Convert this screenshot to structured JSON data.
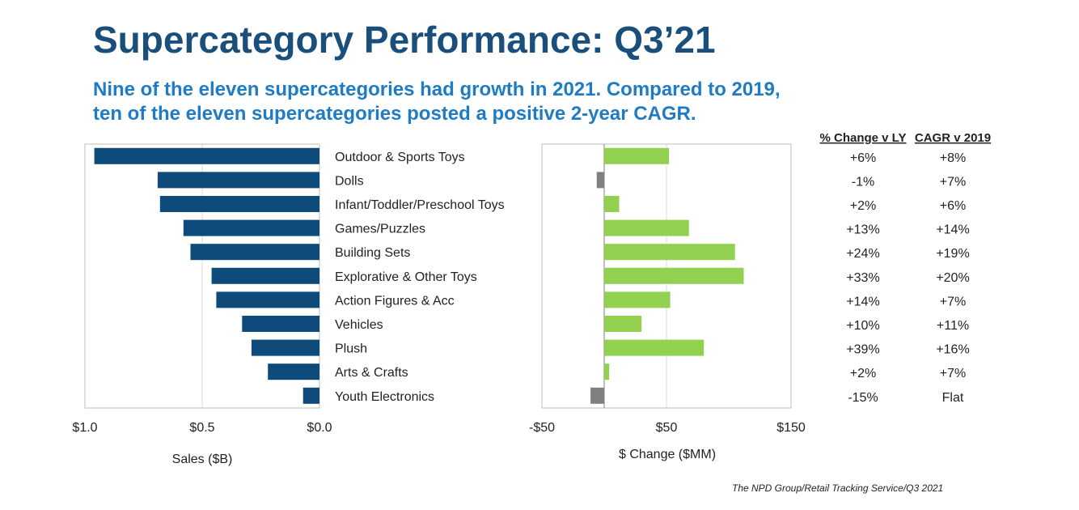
{
  "title": "Supercategory Performance: Q3’21",
  "subtitle_lines": [
    "Nine of the eleven supercategories had growth in 2021. Compared to 2019,",
    "ten of the eleven supercategories posted a positive 2-year CAGR."
  ],
  "source": "The NPD Group/Retail Tracking Service/Q3 2021",
  "colors": {
    "sales_bar": "#0f4b7a",
    "positive_change": "#92d050",
    "negative_change": "#808080",
    "title": "#1a4f7c",
    "subtitle": "#1e7bc4"
  },
  "chart_data": [
    {
      "type": "bar",
      "orientation": "horizontal",
      "reversed_x": true,
      "categories": [
        "Outdoor & Sports Toys",
        "Dolls",
        "Infant/Toddler/Preschool Toys",
        "Games/Puzzles",
        "Building Sets",
        "Explorative & Other Toys",
        "Action Figures & Acc",
        "Vehicles",
        "Plush",
        "Arts & Crafts",
        "Youth Electronics"
      ],
      "values": [
        0.96,
        0.69,
        0.68,
        0.58,
        0.55,
        0.46,
        0.44,
        0.33,
        0.29,
        0.22,
        0.07
      ],
      "xlabel": "Sales ($B)",
      "xlim": [
        0,
        1.0
      ],
      "xticks": [
        1.0,
        0.5,
        0.0
      ],
      "xtick_labels": [
        "$1.0",
        "$0.5",
        "$0.0"
      ]
    },
    {
      "type": "bar",
      "orientation": "horizontal",
      "categories": [
        "Outdoor & Sports Toys",
        "Dolls",
        "Infant/Toddler/Preschool Toys",
        "Games/Puzzles",
        "Building Sets",
        "Explorative & Other Toys",
        "Action Figures & Acc",
        "Vehicles",
        "Plush",
        "Arts & Crafts",
        "Youth Electronics"
      ],
      "values": [
        52,
        -6,
        12,
        68,
        105,
        112,
        53,
        30,
        80,
        4,
        -11
      ],
      "xlabel": "$ Change ($MM)",
      "xlim": [
        -50,
        150
      ],
      "xticks": [
        -50,
        50,
        150
      ],
      "xtick_labels": [
        "-$50",
        "$50",
        "$150"
      ]
    }
  ],
  "table": {
    "headers": [
      "% Change v LY",
      "CAGR v 2019"
    ],
    "rows": [
      [
        "+6%",
        "+8%"
      ],
      [
        "-1%",
        "+7%"
      ],
      [
        "+2%",
        "+6%"
      ],
      [
        "+13%",
        "+14%"
      ],
      [
        "+24%",
        "+19%"
      ],
      [
        "+33%",
        "+20%"
      ],
      [
        "+14%",
        "+7%"
      ],
      [
        "+10%",
        "+11%"
      ],
      [
        "+39%",
        "+16%"
      ],
      [
        "+2%",
        "+7%"
      ],
      [
        "-15%",
        "Flat"
      ]
    ]
  }
}
